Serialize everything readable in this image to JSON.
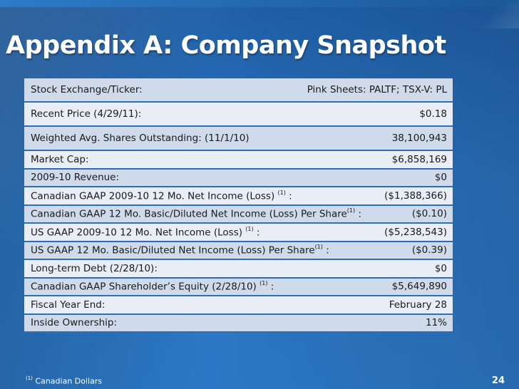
{
  "slide": {
    "title": "Appendix A: Company Snapshot",
    "page_number": "24",
    "footnote": {
      "marker": "(1)",
      "text": " Canadian Dollars"
    },
    "colors": {
      "background": "#2a72be",
      "row_odd": "#cfdaeb",
      "row_even": "#e8edf6",
      "border": "#2c6fb8"
    }
  },
  "rows": [
    {
      "label": "Stock Exchange/Ticker:",
      "sup": "",
      "label_suffix": "",
      "value": "Pink Sheets: PALTF; TSX-V: PL"
    },
    {
      "label": "Recent Price (4/29/11):",
      "sup": "",
      "label_suffix": "",
      "value": "$0.18"
    },
    {
      "label": "Weighted Avg. Shares Outstanding: (11/1/10)",
      "sup": "",
      "label_suffix": "",
      "value": "38,100,943"
    },
    {
      "label": "Market Cap:",
      "sup": "",
      "label_suffix": "",
      "value": "$6,858,169"
    },
    {
      "label": "2009-10 Revenue:",
      "sup": "",
      "label_suffix": "",
      "value": "$0"
    },
    {
      "label": "Canadian GAAP 2009-10 12 Mo. Net Income (Loss) ",
      "sup": "(1)",
      "label_suffix": " :",
      "value": "($1,388,366)"
    },
    {
      "label": "Canadian GAAP 12 Mo. Basic/Diluted Net Income (Loss) Per Share",
      "sup": "(1)",
      "label_suffix": " :",
      "value": "($0.10)"
    },
    {
      "label": "US GAAP 2009-10 12 Mo. Net Income (Loss) ",
      "sup": "(1)",
      "label_suffix": " :",
      "value": "($5,238,543)"
    },
    {
      "label": "US GAAP 12 Mo. Basic/Diluted Net Income (Loss) Per Share",
      "sup": "(1)",
      "label_suffix": " :",
      "value": "($0.39)"
    },
    {
      "label": "Long-term Debt (2/28/10):",
      "sup": "",
      "label_suffix": "",
      "value": "$0"
    },
    {
      "label": "Canadian GAAP Shareholder’s Equity (2/28/10) ",
      "sup": "(1)",
      "label_suffix": " :",
      "value": "$5,649,890"
    },
    {
      "label": "Fiscal Year End:",
      "sup": "",
      "label_suffix": "",
      "value": "February 28"
    },
    {
      "label": "Inside Ownership:",
      "sup": "",
      "label_suffix": "",
      "value": "11%"
    }
  ]
}
